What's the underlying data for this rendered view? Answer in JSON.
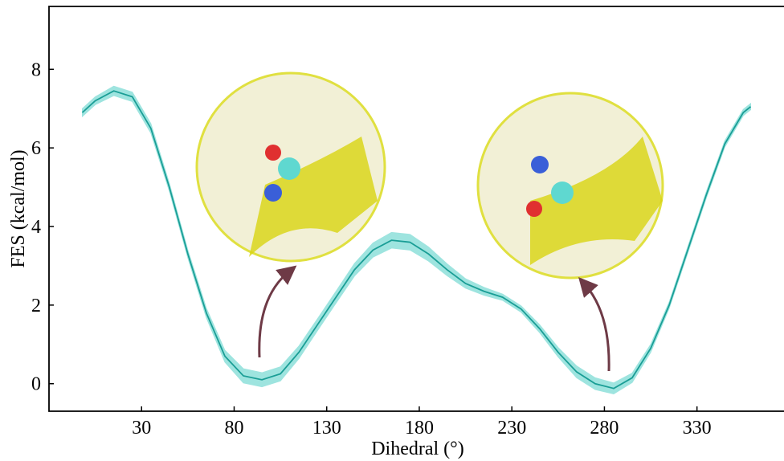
{
  "chart_data": {
    "type": "line",
    "xlabel": "Dihedral (°)",
    "ylabel": "FES (kcal/mol)",
    "x": [
      -2,
      5,
      15,
      25,
      35,
      45,
      55,
      65,
      75,
      85,
      95,
      105,
      115,
      125,
      135,
      145,
      155,
      165,
      175,
      185,
      195,
      205,
      215,
      225,
      235,
      245,
      255,
      265,
      275,
      285,
      295,
      305,
      315,
      325,
      335,
      345,
      355,
      359
    ],
    "series": [
      {
        "name": "FES",
        "color": "#1a9e96",
        "band_color": "#5ed3cb",
        "values": [
          6.9,
          7.2,
          7.45,
          7.3,
          6.5,
          5.0,
          3.3,
          1.8,
          0.7,
          0.2,
          0.1,
          0.25,
          0.8,
          1.5,
          2.2,
          2.9,
          3.4,
          3.65,
          3.6,
          3.3,
          2.9,
          2.55,
          2.35,
          2.2,
          1.9,
          1.4,
          0.8,
          0.3,
          0.0,
          -0.12,
          0.15,
          0.9,
          2.0,
          3.4,
          4.8,
          6.1,
          6.9,
          7.05
        ],
        "errors": [
          0.1,
          0.1,
          0.12,
          0.12,
          0.12,
          0.1,
          0.1,
          0.12,
          0.15,
          0.18,
          0.18,
          0.18,
          0.16,
          0.15,
          0.15,
          0.16,
          0.18,
          0.2,
          0.2,
          0.18,
          0.15,
          0.12,
          0.1,
          0.08,
          0.08,
          0.1,
          0.12,
          0.15,
          0.15,
          0.14,
          0.12,
          0.1,
          0.08,
          0.08,
          0.08,
          0.08,
          0.08,
          0.08
        ]
      }
    ],
    "xlim": [
      -20,
      377
    ],
    "ylim": [
      -0.7,
      9.6
    ],
    "xticks": [
      30,
      80,
      130,
      180,
      230,
      280,
      330
    ],
    "yticks": [
      0,
      2,
      4,
      6,
      8
    ]
  }
}
